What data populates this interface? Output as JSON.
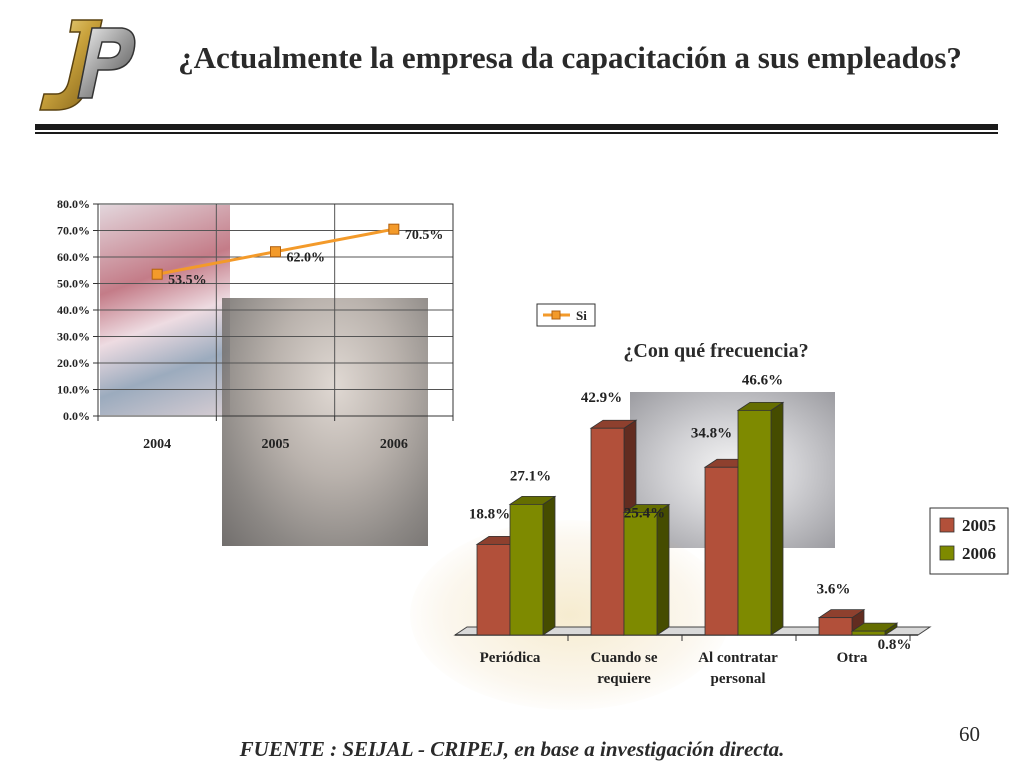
{
  "slide": {
    "title": "¿Actualmente la empresa da capacitación a sus empleados?",
    "footer": "FUENTE :  SEIJAL - CRIPEJ,  en base a investigación directa.",
    "page_number": "60"
  },
  "chart_data": [
    {
      "type": "line",
      "title": "",
      "x": [
        "2004",
        "2005",
        "2006"
      ],
      "series": [
        {
          "name": "Si",
          "values": [
            53.5,
            62.0,
            70.5
          ],
          "color": "#f39a2a"
        }
      ],
      "data_labels": [
        "53.5%",
        "62.0%",
        "70.5%"
      ],
      "ylim": [
        0,
        80
      ],
      "y_ticks": [
        "0.0%",
        "10.0%",
        "20.0%",
        "30.0%",
        "40.0%",
        "50.0%",
        "60.0%",
        "70.0%",
        "80.0%"
      ],
      "grid": true,
      "legend": "right"
    },
    {
      "type": "bar",
      "title": "¿Con qué frecuencia?",
      "categories": [
        [
          "Periódica"
        ],
        [
          "Cuando se",
          "requiere"
        ],
        [
          "Al contratar",
          "personal"
        ],
        [
          "Otra"
        ]
      ],
      "series": [
        {
          "name": "2005",
          "values": [
            18.8,
            42.9,
            34.8,
            3.6
          ],
          "labels": [
            "18.8%",
            "42.9%",
            "34.8%",
            "3.6%"
          ],
          "color": "#b2503a"
        },
        {
          "name": "2006",
          "values": [
            27.1,
            25.4,
            46.6,
            0.8
          ],
          "labels": [
            "27.1%",
            "25.4%",
            "46.6%",
            "0.8%"
          ],
          "color": "#7e8a00"
        }
      ],
      "legend": "right"
    }
  ]
}
